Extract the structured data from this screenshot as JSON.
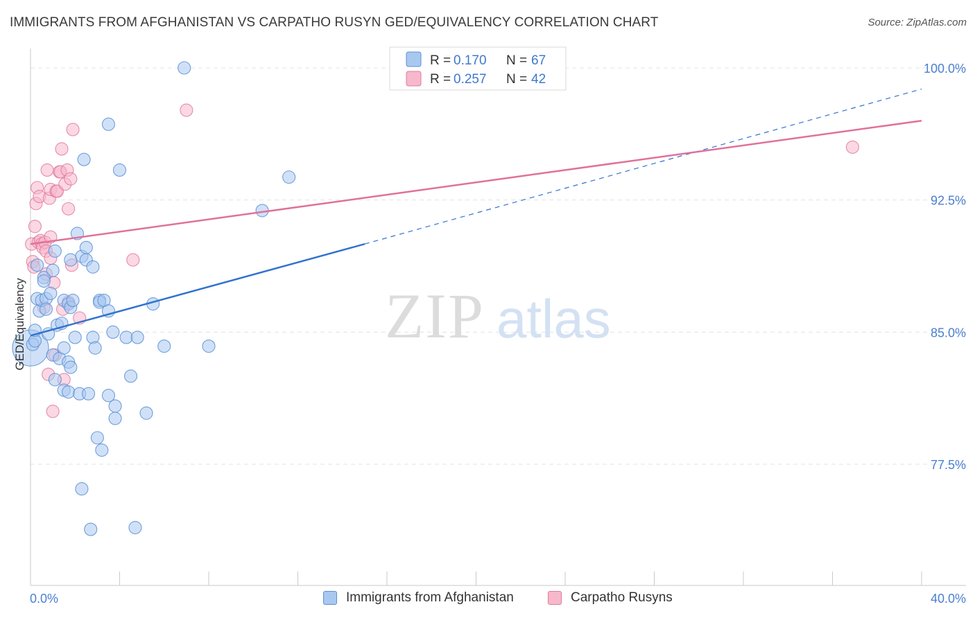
{
  "header": {
    "title": "IMMIGRANTS FROM AFGHANISTAN VS CARPATHO RUSYN GED/EQUIVALENCY CORRELATION CHART",
    "source": "Source: ZipAtlas.com"
  },
  "watermark": {
    "zip": "ZIP",
    "atlas": "atlas"
  },
  "colors": {
    "blue_fill": "#a9c8f0",
    "blue_stroke": "#5b8fd6",
    "blue_line": "#3273cf",
    "pink_fill": "#f7b8cc",
    "pink_stroke": "#e07a9e",
    "pink_line": "#e0719a",
    "axis_label": "#4a7fd0",
    "grid": "#e3e3e3"
  },
  "chart_data": {
    "type": "scatter",
    "xlabel": "",
    "ylabel": "GED/Equivalency",
    "xlim": [
      0,
      40
    ],
    "ylim": [
      71.5,
      100.8
    ],
    "x_tick_labels": {
      "min": "0.0%",
      "max": "40.0%"
    },
    "y_ticks": [
      {
        "value": 100.0,
        "label": "100.0%"
      },
      {
        "value": 92.5,
        "label": "92.5%"
      },
      {
        "value": 85.0,
        "label": "85.0%"
      },
      {
        "value": 77.5,
        "label": "77.5%"
      }
    ],
    "grid": "horizontal-dashed",
    "legend_placement": "top-center",
    "stats": [
      {
        "r_label": "R =",
        "r_value": "0.170",
        "n_label": "N =",
        "n_value": "67"
      },
      {
        "r_label": "R =",
        "r_value": "0.257",
        "n_label": "N =",
        "n_value": "42"
      }
    ],
    "series": [
      {
        "name": "Immigrants from Afghanistan",
        "trend": {
          "x_start": 0,
          "y_start": 84.8,
          "x_solid_end": 15,
          "y_solid_end": 90.0,
          "x_end": 40,
          "y_end": 98.8
        },
        "points": [
          {
            "x": 0.0,
            "y": 84.1,
            "s": 26
          },
          {
            "x": 0.1,
            "y": 84.3,
            "s": 9
          },
          {
            "x": 0.2,
            "y": 84.5,
            "s": 9
          },
          {
            "x": 0.2,
            "y": 85.1,
            "s": 9
          },
          {
            "x": 0.3,
            "y": 86.9,
            "s": 9
          },
          {
            "x": 0.3,
            "y": 88.8,
            "s": 9
          },
          {
            "x": 0.4,
            "y": 86.2,
            "s": 9
          },
          {
            "x": 0.5,
            "y": 86.8,
            "s": 9
          },
          {
            "x": 0.6,
            "y": 88.1,
            "s": 9
          },
          {
            "x": 0.6,
            "y": 87.9,
            "s": 9
          },
          {
            "x": 0.7,
            "y": 86.9,
            "s": 9
          },
          {
            "x": 0.7,
            "y": 86.3,
            "s": 9
          },
          {
            "x": 0.8,
            "y": 84.9,
            "s": 9
          },
          {
            "x": 0.9,
            "y": 87.2,
            "s": 9
          },
          {
            "x": 1.0,
            "y": 83.7,
            "s": 9
          },
          {
            "x": 1.0,
            "y": 88.5,
            "s": 9
          },
          {
            "x": 1.1,
            "y": 89.6,
            "s": 9
          },
          {
            "x": 1.1,
            "y": 82.3,
            "s": 9
          },
          {
            "x": 1.2,
            "y": 85.4,
            "s": 9
          },
          {
            "x": 1.3,
            "y": 83.5,
            "s": 9
          },
          {
            "x": 1.4,
            "y": 85.5,
            "s": 9
          },
          {
            "x": 1.5,
            "y": 81.7,
            "s": 9
          },
          {
            "x": 1.5,
            "y": 84.1,
            "s": 9
          },
          {
            "x": 1.5,
            "y": 86.8,
            "s": 9
          },
          {
            "x": 1.7,
            "y": 83.3,
            "s": 9
          },
          {
            "x": 1.7,
            "y": 81.6,
            "s": 9
          },
          {
            "x": 1.7,
            "y": 86.6,
            "s": 9
          },
          {
            "x": 1.8,
            "y": 83.0,
            "s": 9
          },
          {
            "x": 1.8,
            "y": 86.4,
            "s": 9
          },
          {
            "x": 1.9,
            "y": 86.8,
            "s": 9
          },
          {
            "x": 1.8,
            "y": 89.1,
            "s": 9
          },
          {
            "x": 2.0,
            "y": 84.7,
            "s": 9
          },
          {
            "x": 2.1,
            "y": 90.6,
            "s": 9
          },
          {
            "x": 2.2,
            "y": 81.5,
            "s": 9
          },
          {
            "x": 2.3,
            "y": 76.1,
            "s": 9
          },
          {
            "x": 2.3,
            "y": 89.3,
            "s": 9
          },
          {
            "x": 2.4,
            "y": 94.8,
            "s": 9
          },
          {
            "x": 2.5,
            "y": 89.8,
            "s": 9
          },
          {
            "x": 2.6,
            "y": 81.5,
            "s": 9
          },
          {
            "x": 2.5,
            "y": 89.1,
            "s": 9
          },
          {
            "x": 2.7,
            "y": 73.8,
            "s": 9
          },
          {
            "x": 2.8,
            "y": 84.7,
            "s": 9
          },
          {
            "x": 2.8,
            "y": 88.7,
            "s": 9
          },
          {
            "x": 2.9,
            "y": 84.1,
            "s": 9
          },
          {
            "x": 3.0,
            "y": 79.0,
            "s": 9
          },
          {
            "x": 3.1,
            "y": 86.8,
            "s": 9
          },
          {
            "x": 3.1,
            "y": 86.7,
            "s": 9
          },
          {
            "x": 3.2,
            "y": 78.3,
            "s": 9
          },
          {
            "x": 3.3,
            "y": 86.8,
            "s": 9
          },
          {
            "x": 3.5,
            "y": 81.4,
            "s": 9
          },
          {
            "x": 3.5,
            "y": 86.2,
            "s": 9
          },
          {
            "x": 3.5,
            "y": 96.8,
            "s": 9
          },
          {
            "x": 3.7,
            "y": 85.0,
            "s": 9
          },
          {
            "x": 3.8,
            "y": 80.8,
            "s": 9
          },
          {
            "x": 3.8,
            "y": 80.1,
            "s": 9
          },
          {
            "x": 4.0,
            "y": 94.2,
            "s": 9
          },
          {
            "x": 4.3,
            "y": 84.7,
            "s": 9
          },
          {
            "x": 4.5,
            "y": 82.5,
            "s": 9
          },
          {
            "x": 4.7,
            "y": 73.9,
            "s": 9
          },
          {
            "x": 4.8,
            "y": 84.7,
            "s": 9
          },
          {
            "x": 5.2,
            "y": 80.4,
            "s": 9
          },
          {
            "x": 5.5,
            "y": 86.6,
            "s": 9
          },
          {
            "x": 6.0,
            "y": 84.2,
            "s": 9
          },
          {
            "x": 6.9,
            "y": 100.0,
            "s": 9
          },
          {
            "x": 8.0,
            "y": 84.2,
            "s": 9
          },
          {
            "x": 10.4,
            "y": 91.9,
            "s": 9
          },
          {
            "x": 11.6,
            "y": 93.8,
            "s": 9
          }
        ]
      },
      {
        "name": "Carpatho Rusyns",
        "trend": {
          "x_start": 0,
          "y_start": 90.0,
          "x_end": 40,
          "y_end": 97.0
        },
        "points": [
          {
            "x": 0.05,
            "y": 90.0,
            "s": 9
          },
          {
            "x": 0.1,
            "y": 89.0,
            "s": 9
          },
          {
            "x": 0.15,
            "y": 88.7,
            "s": 9
          },
          {
            "x": 0.2,
            "y": 91.0,
            "s": 9
          },
          {
            "x": 0.25,
            "y": 92.3,
            "s": 9
          },
          {
            "x": 0.3,
            "y": 93.2,
            "s": 9
          },
          {
            "x": 0.35,
            "y": 90.1,
            "s": 9
          },
          {
            "x": 0.4,
            "y": 92.7,
            "s": 9
          },
          {
            "x": 0.45,
            "y": 90.2,
            "s": 9
          },
          {
            "x": 0.5,
            "y": 90.0,
            "s": 9
          },
          {
            "x": 0.55,
            "y": 89.8,
            "s": 9
          },
          {
            "x": 0.6,
            "y": 86.4,
            "s": 9
          },
          {
            "x": 0.65,
            "y": 90.1,
            "s": 9
          },
          {
            "x": 0.7,
            "y": 89.6,
            "s": 9
          },
          {
            "x": 0.7,
            "y": 88.3,
            "s": 9
          },
          {
            "x": 0.75,
            "y": 94.2,
            "s": 9
          },
          {
            "x": 0.8,
            "y": 82.6,
            "s": 9
          },
          {
            "x": 0.85,
            "y": 92.6,
            "s": 9
          },
          {
            "x": 0.9,
            "y": 90.4,
            "s": 9
          },
          {
            "x": 0.9,
            "y": 89.2,
            "s": 9
          },
          {
            "x": 0.9,
            "y": 93.1,
            "s": 9
          },
          {
            "x": 1.0,
            "y": 80.5,
            "s": 9
          },
          {
            "x": 1.05,
            "y": 87.8,
            "s": 9
          },
          {
            "x": 1.1,
            "y": 83.7,
            "s": 9
          },
          {
            "x": 1.15,
            "y": 93.0,
            "s": 9
          },
          {
            "x": 1.2,
            "y": 93.0,
            "s": 9
          },
          {
            "x": 1.3,
            "y": 94.1,
            "s": 9
          },
          {
            "x": 1.35,
            "y": 94.1,
            "s": 9
          },
          {
            "x": 1.4,
            "y": 95.4,
            "s": 9
          },
          {
            "x": 1.45,
            "y": 86.3,
            "s": 9
          },
          {
            "x": 1.5,
            "y": 82.3,
            "s": 9
          },
          {
            "x": 1.55,
            "y": 93.4,
            "s": 9
          },
          {
            "x": 1.65,
            "y": 94.2,
            "s": 9
          },
          {
            "x": 1.7,
            "y": 92.0,
            "s": 9
          },
          {
            "x": 1.7,
            "y": 86.7,
            "s": 9
          },
          {
            "x": 1.8,
            "y": 93.7,
            "s": 9
          },
          {
            "x": 1.85,
            "y": 88.8,
            "s": 9
          },
          {
            "x": 1.9,
            "y": 96.5,
            "s": 9
          },
          {
            "x": 2.2,
            "y": 85.8,
            "s": 9
          },
          {
            "x": 4.6,
            "y": 89.1,
            "s": 9
          },
          {
            "x": 7.0,
            "y": 97.6,
            "s": 9
          },
          {
            "x": 36.9,
            "y": 95.5,
            "s": 9
          }
        ]
      }
    ]
  }
}
